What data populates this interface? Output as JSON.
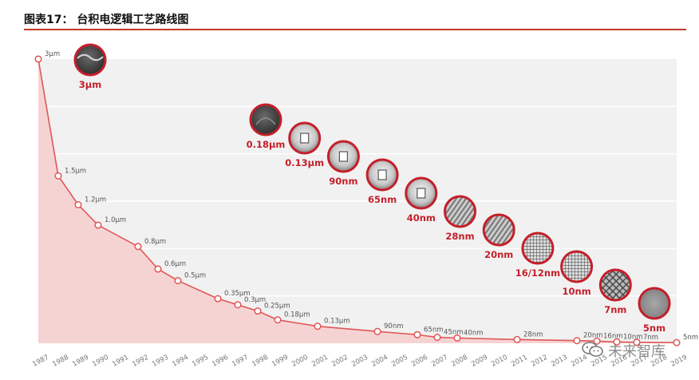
{
  "figure": {
    "title": "图表17：  台积电逻辑工艺路线图"
  },
  "watermark": {
    "text": "未来智库"
  },
  "colors": {
    "line": "#e05656",
    "area": "#f6d3d3",
    "rule": "#c0392b",
    "bubble_ring": "#c41f2a",
    "bubble_label": "#c41f2a",
    "panel": "#f0f0f0"
  },
  "chart_data": {
    "type": "area",
    "title": "",
    "xlabel": "",
    "ylabel": "",
    "grid": true,
    "x_ticks": [
      "1987",
      "1988",
      "1989",
      "1990",
      "1991",
      "1992",
      "1993",
      "1994",
      "1995",
      "1996",
      "1997",
      "1998",
      "1999",
      "2000",
      "2001",
      "2002",
      "2003",
      "2004",
      "2005",
      "2006",
      "2007",
      "2008",
      "2009",
      "2010",
      "2011",
      "2012",
      "2013",
      "2014",
      "2015",
      "2016",
      "2017",
      "2018",
      "2019"
    ],
    "series": [
      {
        "points": [
          {
            "year": 1987,
            "label": "3μm",
            "value_um": 3.0
          },
          {
            "year": 1988,
            "label": "1.5μm",
            "value_um": 1.5
          },
          {
            "year": 1989,
            "label": "1.2μm",
            "value_um": 1.2
          },
          {
            "year": 1990,
            "label": "1.0μm",
            "value_um": 1.0
          },
          {
            "year": 1992,
            "label": "0.8μm",
            "value_um": 0.8
          },
          {
            "year": 1993,
            "label": "0.6μm",
            "value_um": 0.6
          },
          {
            "year": 1994,
            "label": "0.5μm",
            "value_um": 0.5
          },
          {
            "year": 1996,
            "label": "0.35μm",
            "value_um": 0.35
          },
          {
            "year": 1997,
            "label": "0.3μm",
            "value_um": 0.3
          },
          {
            "year": 1998,
            "label": "0.25μm",
            "value_um": 0.25
          },
          {
            "year": 1999,
            "label": "0.18μm",
            "value_um": 0.18
          },
          {
            "year": 2001,
            "label": "0.13μm",
            "value_um": 0.13
          },
          {
            "year": 2004,
            "label": "90nm",
            "value_um": 0.09
          },
          {
            "year": 2006,
            "label": "65nm",
            "value_um": 0.065
          },
          {
            "year": 2007,
            "label": "45nm",
            "value_um": 0.045
          },
          {
            "year": 2008,
            "label": "40nm",
            "value_um": 0.04
          },
          {
            "year": 2011,
            "label": "28nm",
            "value_um": 0.028
          },
          {
            "year": 2014,
            "label": "20nm",
            "value_um": 0.02
          },
          {
            "year": 2015,
            "label": "16nm",
            "value_um": 0.016
          },
          {
            "year": 2016,
            "label": "10nm",
            "value_um": 0.01
          },
          {
            "year": 2017,
            "label": "7nm",
            "value_um": 0.007
          },
          {
            "year": 2019,
            "label": "5nm",
            "value_um": 0.005
          }
        ]
      }
    ],
    "bubbles": [
      {
        "label": "3μm",
        "year": 1987,
        "fill": "dark-wave"
      },
      {
        "label": "0.18μm",
        "year": 1999,
        "fill": "dark"
      },
      {
        "label": "0.13μm",
        "year": 2001,
        "fill": "light"
      },
      {
        "label": "90nm",
        "year": 2004,
        "fill": "light"
      },
      {
        "label": "65nm",
        "year": 2006,
        "fill": "light"
      },
      {
        "label": "40nm",
        "year": 2008,
        "fill": "light"
      },
      {
        "label": "28nm",
        "year": 2011,
        "fill": "fins"
      },
      {
        "label": "20nm",
        "year": 2014,
        "fill": "fins"
      },
      {
        "label": "16/12nm",
        "year": 2015,
        "fill": "grid"
      },
      {
        "label": "10nm",
        "year": 2016,
        "fill": "grid"
      },
      {
        "label": "7nm",
        "year": 2017,
        "fill": "mesh"
      },
      {
        "label": "5nm",
        "year": 2019,
        "fill": "flat"
      }
    ]
  }
}
